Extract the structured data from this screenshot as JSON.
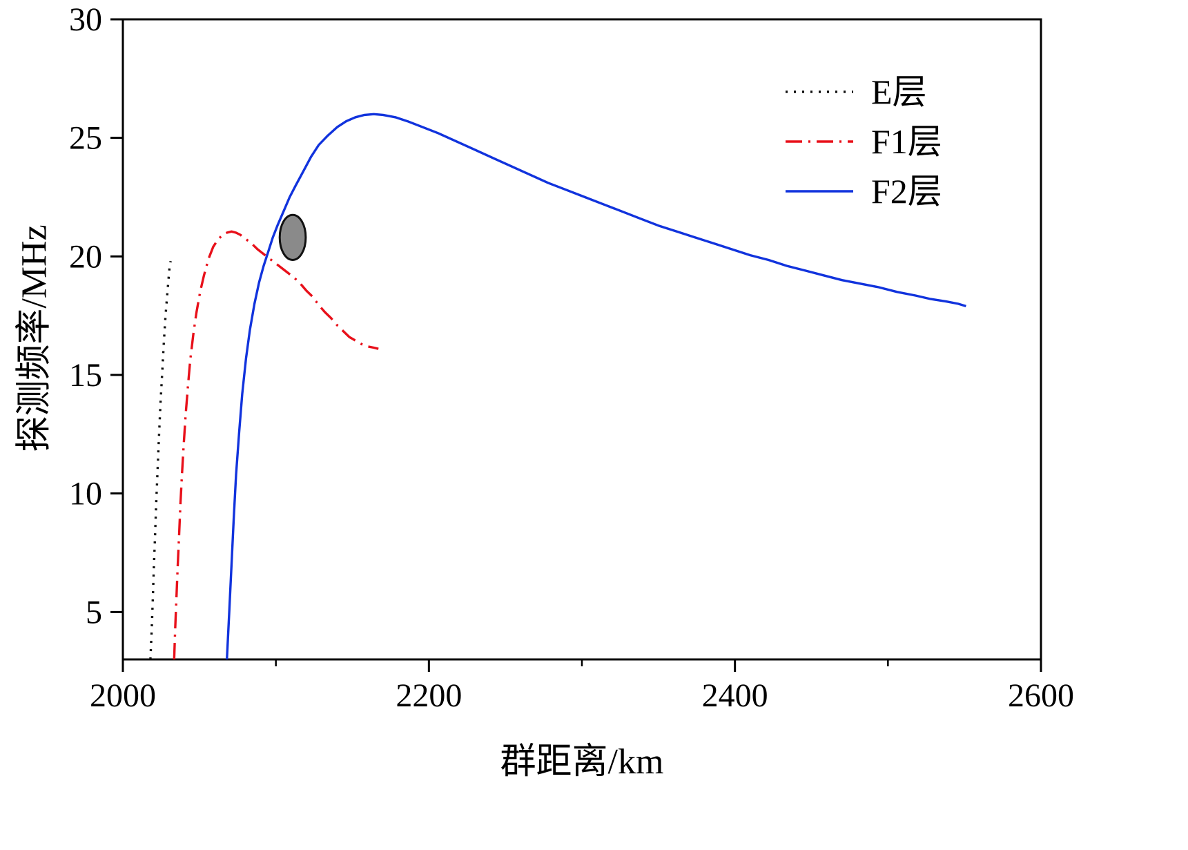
{
  "chart_data": {
    "type": "line",
    "title": "",
    "xlabel": "群距离/km",
    "ylabel": "探测频率/MHz",
    "xlim": [
      2000,
      2600
    ],
    "ylim": [
      3,
      30
    ],
    "x_ticks": [
      2000,
      2200,
      2400,
      2600
    ],
    "x_minor_ticks": [
      2100,
      2300,
      2500
    ],
    "y_ticks": [
      5,
      10,
      15,
      20,
      25,
      30
    ],
    "grid": false,
    "legend_position": "top-right",
    "series": [
      {
        "name": "E层",
        "color": "#111111",
        "style": "dotted",
        "points": [
          [
            2018,
            3
          ],
          [
            2018.8,
            4.2
          ],
          [
            2019.5,
            5.4
          ],
          [
            2020.2,
            6.8
          ],
          [
            2021,
            8.2
          ],
          [
            2021.8,
            9.6
          ],
          [
            2022.7,
            11.0
          ],
          [
            2023.6,
            12.4
          ],
          [
            2024.6,
            13.8
          ],
          [
            2025.7,
            15.1
          ],
          [
            2026.8,
            16.4
          ],
          [
            2027.9,
            17.5
          ],
          [
            2029,
            18.4
          ],
          [
            2029.9,
            19.1
          ],
          [
            2030.6,
            19.6
          ],
          [
            2031.2,
            19.8
          ]
        ]
      },
      {
        "name": "F1层",
        "color": "#e8101a",
        "style": "dashdot",
        "points": [
          [
            2033.5,
            3
          ],
          [
            2034.2,
            4.3
          ],
          [
            2035,
            5.6
          ],
          [
            2035.8,
            6.9
          ],
          [
            2036.7,
            8.2
          ],
          [
            2037.6,
            9.5
          ],
          [
            2038.6,
            10.8
          ],
          [
            2039.7,
            12.0
          ],
          [
            2041,
            13.3
          ],
          [
            2042.5,
            14.5
          ],
          [
            2044,
            15.6
          ],
          [
            2046,
            16.7
          ],
          [
            2048,
            17.6
          ],
          [
            2050.5,
            18.5
          ],
          [
            2053,
            19.2
          ],
          [
            2056,
            19.9
          ],
          [
            2059,
            20.4
          ],
          [
            2062,
            20.7
          ],
          [
            2065,
            20.9
          ],
          [
            2068,
            21.0
          ],
          [
            2071,
            21.05
          ],
          [
            2074,
            21.0
          ],
          [
            2077,
            20.9
          ],
          [
            2080,
            20.75
          ],
          [
            2084,
            20.55
          ],
          [
            2088,
            20.3
          ],
          [
            2092,
            20.1
          ],
          [
            2096,
            19.9
          ],
          [
            2100,
            19.7
          ],
          [
            2104,
            19.5
          ],
          [
            2108,
            19.3
          ],
          [
            2112,
            19.1
          ],
          [
            2116,
            18.85
          ],
          [
            2120,
            18.55
          ],
          [
            2124,
            18.3
          ],
          [
            2128,
            17.95
          ],
          [
            2132,
            17.65
          ],
          [
            2136,
            17.4
          ],
          [
            2140,
            17.1
          ],
          [
            2144,
            16.85
          ],
          [
            2148,
            16.6
          ],
          [
            2152,
            16.45
          ],
          [
            2156,
            16.3
          ],
          [
            2160,
            16.2
          ],
          [
            2164,
            16.15
          ],
          [
            2167,
            16.1
          ]
        ]
      },
      {
        "name": "F2层",
        "color": "#1133dd",
        "style": "solid",
        "points": [
          [
            2068,
            3
          ],
          [
            2069.5,
            5
          ],
          [
            2071,
            7
          ],
          [
            2072.5,
            9
          ],
          [
            2074,
            10.8
          ],
          [
            2076,
            12.6
          ],
          [
            2078,
            14.2
          ],
          [
            2080.5,
            15.7
          ],
          [
            2083,
            16.9
          ],
          [
            2086,
            18.0
          ],
          [
            2089,
            18.9
          ],
          [
            2092,
            19.6
          ],
          [
            2095,
            20.2
          ],
          [
            2098,
            20.8
          ],
          [
            2101,
            21.3
          ],
          [
            2105,
            21.9
          ],
          [
            2109,
            22.5
          ],
          [
            2113,
            23.0
          ],
          [
            2118,
            23.6
          ],
          [
            2123,
            24.2
          ],
          [
            2128,
            24.7
          ],
          [
            2134,
            25.1
          ],
          [
            2140,
            25.45
          ],
          [
            2146,
            25.7
          ],
          [
            2152,
            25.87
          ],
          [
            2158,
            25.97
          ],
          [
            2164,
            26.0
          ],
          [
            2170,
            25.97
          ],
          [
            2178,
            25.87
          ],
          [
            2186,
            25.7
          ],
          [
            2196,
            25.45
          ],
          [
            2206,
            25.2
          ],
          [
            2218,
            24.85
          ],
          [
            2230,
            24.5
          ],
          [
            2242,
            24.15
          ],
          [
            2254,
            23.8
          ],
          [
            2266,
            23.45
          ],
          [
            2278,
            23.1
          ],
          [
            2290,
            22.8
          ],
          [
            2302,
            22.5
          ],
          [
            2314,
            22.2
          ],
          [
            2326,
            21.9
          ],
          [
            2338,
            21.6
          ],
          [
            2350,
            21.3
          ],
          [
            2362,
            21.05
          ],
          [
            2374,
            20.8
          ],
          [
            2386,
            20.55
          ],
          [
            2398,
            20.3
          ],
          [
            2410,
            20.05
          ],
          [
            2422,
            19.85
          ],
          [
            2434,
            19.6
          ],
          [
            2446,
            19.4
          ],
          [
            2458,
            19.2
          ],
          [
            2470,
            19.0
          ],
          [
            2482,
            18.85
          ],
          [
            2494,
            18.7
          ],
          [
            2506,
            18.5
          ],
          [
            2518,
            18.35
          ],
          [
            2528,
            18.2
          ],
          [
            2538,
            18.1
          ],
          [
            2546,
            18.0
          ],
          [
            2551,
            17.9
          ]
        ]
      }
    ],
    "annotations": [
      {
        "type": "ellipse",
        "x": 2111,
        "y": 20.8,
        "rx": 8.5,
        "ry": 0.95,
        "fill": "#8a8a8a",
        "stroke": "#111111"
      }
    ]
  }
}
